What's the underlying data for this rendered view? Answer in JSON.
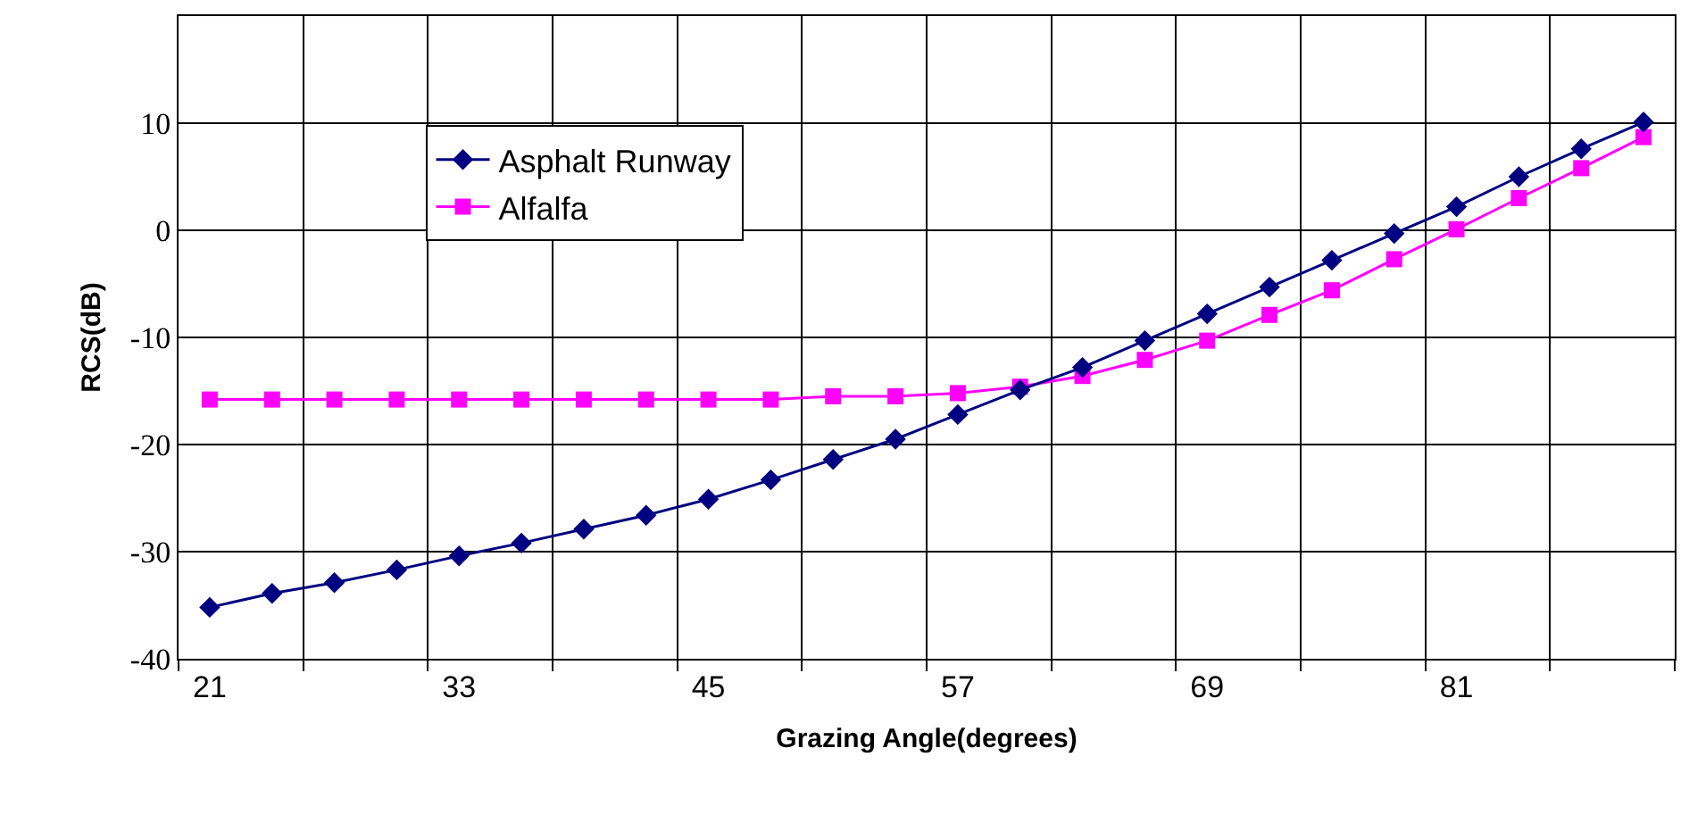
{
  "chart_data": {
    "type": "line",
    "xlabel": "Grazing Angle(degrees)",
    "ylabel": "RCS(dB)",
    "categories": [
      "21",
      null,
      null,
      null,
      "33",
      null,
      null,
      null,
      "45",
      null,
      null,
      null,
      "57",
      null,
      null,
      null,
      "69",
      null,
      null,
      null,
      "81",
      null,
      null,
      null
    ],
    "series": [
      {
        "name": "Asphalt Runway",
        "color": "#000080",
        "marker": "diamond",
        "values": [
          -35.2,
          -33.9,
          -32.9,
          -31.7,
          -30.4,
          -29.2,
          -27.9,
          -26.6,
          -25.1,
          -23.3,
          -21.4,
          -19.5,
          -17.2,
          -14.9,
          -12.8,
          -10.3,
          -7.8,
          -5.3,
          -2.8,
          -0.3,
          2.2,
          5.0,
          7.6,
          10.1
        ]
      },
      {
        "name": "Alfalfa",
        "color": "#ff00ff",
        "marker": "square",
        "values": [
          -15.8,
          -15.8,
          -15.8,
          -15.8,
          -15.8,
          -15.8,
          -15.8,
          -15.8,
          -15.8,
          -15.8,
          -15.5,
          -15.5,
          -15.2,
          -14.6,
          -13.6,
          -12.1,
          -10.3,
          -7.9,
          -5.6,
          -2.7,
          0.1,
          3.0,
          5.8,
          8.7
        ]
      }
    ],
    "ylim": [
      -40,
      20
    ],
    "yticks": [
      -40,
      -30,
      -20,
      -10,
      0,
      10,
      {
        "value": 20,
        "label": null
      }
    ],
    "grid": true,
    "legend": "top left",
    "line_style": "solid"
  }
}
